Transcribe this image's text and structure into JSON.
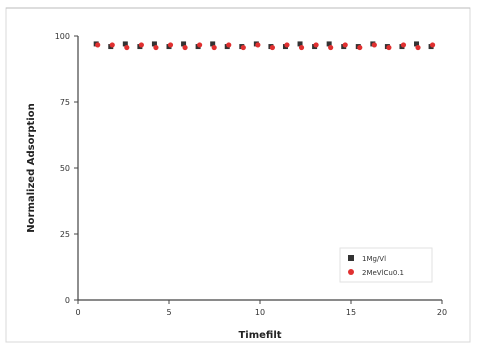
{
  "chart_data": {
    "type": "scatter",
    "title": "",
    "xlabel": "Timefilt",
    "ylabel": "Normalized Adsorption",
    "xlim": [
      0,
      20
    ],
    "ylim": [
      0,
      100
    ],
    "xticks": [
      0,
      5,
      10,
      15,
      20
    ],
    "xtick_labels": [
      "0",
      "5",
      "10",
      "15",
      "20"
    ],
    "yticks": [
      0,
      25,
      50,
      75,
      100
    ],
    "ytick_labels": [
      "0",
      "25",
      "50",
      "75",
      "100"
    ],
    "grid": false,
    "legend_position": "bottom-right",
    "series": [
      {
        "name": "1Mg/Vl",
        "color": "#333333",
        "marker": "square",
        "x": [
          1,
          1.8,
          2.6,
          3.4,
          4.2,
          5,
          5.8,
          6.6,
          7.4,
          8.2,
          9,
          9.8,
          10.6,
          11.4,
          12.2,
          13,
          13.8,
          14.6,
          15.4,
          16.2,
          17,
          17.8,
          18.6,
          19.4
        ],
        "y": [
          97,
          96,
          97,
          96,
          97,
          96,
          97,
          96,
          97,
          96,
          96,
          97,
          96,
          96,
          97,
          96,
          97,
          96,
          96,
          97,
          96,
          96,
          97,
          96
        ]
      },
      {
        "name": "2MeVlCu0.1",
        "color": "#e03030",
        "marker": "circle",
        "x": [
          1,
          1.8,
          2.6,
          3.4,
          4.2,
          5,
          5.8,
          6.6,
          7.4,
          8.2,
          9,
          9.8,
          10.6,
          11.4,
          12.2,
          13,
          13.8,
          14.6,
          15.4,
          16.2,
          17,
          17.8,
          18.6,
          19.4
        ],
        "y": [
          97,
          97,
          96,
          97,
          96,
          97,
          96,
          97,
          96,
          97,
          96,
          97,
          96,
          97,
          96,
          97,
          96,
          97,
          96,
          97,
          96,
          97,
          96,
          97
        ]
      }
    ]
  }
}
